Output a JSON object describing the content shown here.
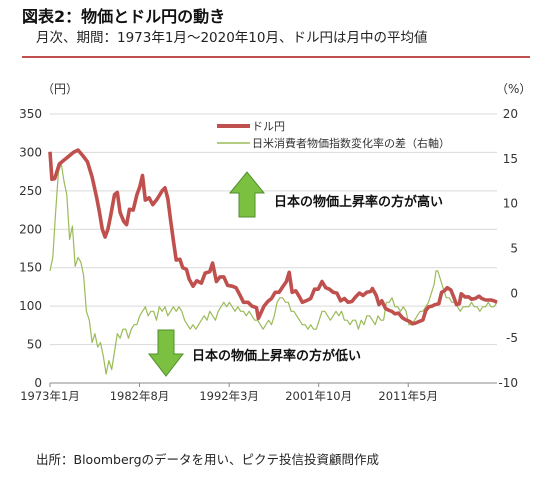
{
  "header": {
    "title": "図表2：物価とドル円の動き",
    "subtitle": "月次、期間：1973年1月～2020年10月、ドル円は月中の平均値"
  },
  "footer": {
    "source": "出所：Bloombergのデータを用い、ピクテ投信投資顧問作成"
  },
  "chart_data": {
    "type": "line",
    "y_left": {
      "unit": "（円）",
      "lim": [
        0,
        350
      ],
      "ticks": [
        0,
        50,
        100,
        150,
        200,
        250,
        300,
        350
      ]
    },
    "y_right": {
      "unit": "（%）",
      "lim": [
        -10,
        20
      ],
      "ticks": [
        -10,
        -5,
        0,
        5,
        10,
        15,
        20
      ]
    },
    "x": {
      "lim": [
        1973.0,
        2020.83
      ],
      "ticks": [
        {
          "value": 1973.0,
          "label": "1973年1月"
        },
        {
          "value": 1982.58,
          "label": "1982年8月"
        },
        {
          "value": 1992.17,
          "label": "1992年3月"
        },
        {
          "value": 2001.75,
          "label": "2001年10月"
        },
        {
          "value": 2011.33,
          "label": "2011年5月"
        }
      ]
    },
    "grid": "horizontal",
    "legend_position": "top-center",
    "colors": {
      "usdjpy": "#c0504d",
      "cpi_diff": "#9bbb59",
      "arrow": "#7cc042"
    },
    "series": [
      {
        "name": "ドル円",
        "axis": "left",
        "points": [
          [
            1973.0,
            301
          ],
          [
            1973.2,
            265
          ],
          [
            1973.5,
            266
          ],
          [
            1974.0,
            285
          ],
          [
            1974.5,
            290
          ],
          [
            1975.0,
            295
          ],
          [
            1975.5,
            300
          ],
          [
            1976.0,
            303
          ],
          [
            1976.5,
            296
          ],
          [
            1977.0,
            288
          ],
          [
            1977.5,
            268
          ],
          [
            1978.0,
            241
          ],
          [
            1978.3,
            222
          ],
          [
            1978.6,
            200
          ],
          [
            1978.9,
            190
          ],
          [
            1979.2,
            200
          ],
          [
            1979.5,
            218
          ],
          [
            1979.9,
            245
          ],
          [
            1980.2,
            248
          ],
          [
            1980.5,
            222
          ],
          [
            1980.9,
            210
          ],
          [
            1981.2,
            206
          ],
          [
            1981.5,
            226
          ],
          [
            1981.9,
            225
          ],
          [
            1982.3,
            245
          ],
          [
            1982.6,
            255
          ],
          [
            1982.9,
            270
          ],
          [
            1983.2,
            238
          ],
          [
            1983.6,
            241
          ],
          [
            1984.0,
            232
          ],
          [
            1984.5,
            240
          ],
          [
            1985.0,
            250
          ],
          [
            1985.3,
            254
          ],
          [
            1985.6,
            240
          ],
          [
            1985.9,
            212
          ],
          [
            1986.2,
            185
          ],
          [
            1986.5,
            160
          ],
          [
            1986.9,
            161
          ],
          [
            1987.2,
            150
          ],
          [
            1987.6,
            148
          ],
          [
            1987.9,
            135
          ],
          [
            1988.3,
            126
          ],
          [
            1988.7,
            133
          ],
          [
            1989.2,
            130
          ],
          [
            1989.6,
            143
          ],
          [
            1990.1,
            145
          ],
          [
            1990.4,
            156
          ],
          [
            1990.8,
            132
          ],
          [
            1991.2,
            138
          ],
          [
            1991.6,
            138
          ],
          [
            1992.0,
            127
          ],
          [
            1992.5,
            126
          ],
          [
            1992.9,
            124
          ],
          [
            1993.3,
            115
          ],
          [
            1993.7,
            105
          ],
          [
            1994.2,
            105
          ],
          [
            1994.6,
            100
          ],
          [
            1995.1,
            98
          ],
          [
            1995.3,
            84
          ],
          [
            1995.6,
            92
          ],
          [
            1995.9,
            100
          ],
          [
            1996.3,
            106
          ],
          [
            1996.7,
            110
          ],
          [
            1997.1,
            118
          ],
          [
            1997.5,
            118
          ],
          [
            1997.9,
            125
          ],
          [
            1998.3,
            132
          ],
          [
            1998.6,
            144
          ],
          [
            1998.9,
            118
          ],
          [
            1999.3,
            120
          ],
          [
            1999.7,
            112
          ],
          [
            2000.0,
            105
          ],
          [
            2000.4,
            107
          ],
          [
            2000.9,
            110
          ],
          [
            2001.3,
            122
          ],
          [
            2001.7,
            122
          ],
          [
            2002.1,
            132
          ],
          [
            2002.5,
            124
          ],
          [
            2002.9,
            122
          ],
          [
            2003.3,
            118
          ],
          [
            2003.7,
            117
          ],
          [
            2004.1,
            107
          ],
          [
            2004.5,
            110
          ],
          [
            2004.9,
            105
          ],
          [
            2005.3,
            106
          ],
          [
            2005.7,
            112
          ],
          [
            2006.1,
            117
          ],
          [
            2006.5,
            114
          ],
          [
            2006.9,
            118
          ],
          [
            2007.3,
            119
          ],
          [
            2007.5,
            123
          ],
          [
            2007.9,
            114
          ],
          [
            2008.2,
            102
          ],
          [
            2008.5,
            107
          ],
          [
            2008.9,
            97
          ],
          [
            2009.2,
            95
          ],
          [
            2009.6,
            93
          ],
          [
            2009.9,
            90
          ],
          [
            2010.3,
            91
          ],
          [
            2010.7,
            85
          ],
          [
            2011.1,
            82
          ],
          [
            2011.5,
            80
          ],
          [
            2011.8,
            77
          ],
          [
            2012.1,
            78
          ],
          [
            2012.5,
            80
          ],
          [
            2012.9,
            82
          ],
          [
            2013.2,
            94
          ],
          [
            2013.5,
            99
          ],
          [
            2013.9,
            100
          ],
          [
            2014.2,
            102
          ],
          [
            2014.6,
            103
          ],
          [
            2014.9,
            118
          ],
          [
            2015.2,
            120
          ],
          [
            2015.5,
            124
          ],
          [
            2015.9,
            121
          ],
          [
            2016.2,
            112
          ],
          [
            2016.5,
            102
          ],
          [
            2016.8,
            103
          ],
          [
            2017.0,
            116
          ],
          [
            2017.4,
            112
          ],
          [
            2017.8,
            112
          ],
          [
            2018.1,
            109
          ],
          [
            2018.5,
            110
          ],
          [
            2018.9,
            113
          ],
          [
            2019.2,
            110
          ],
          [
            2019.6,
            108
          ],
          [
            2019.9,
            108
          ],
          [
            2020.2,
            108
          ],
          [
            2020.5,
            107
          ],
          [
            2020.83,
            105
          ]
        ]
      },
      {
        "name": "日米消費者物価指数変化率の差（右軸）",
        "axis": "right",
        "points": [
          [
            1973.0,
            2.5
          ],
          [
            1973.3,
            4
          ],
          [
            1973.6,
            9
          ],
          [
            1973.9,
            13.5
          ],
          [
            1974.2,
            14.5
          ],
          [
            1974.5,
            12.5
          ],
          [
            1974.8,
            11
          ],
          [
            1975.1,
            6
          ],
          [
            1975.4,
            7.5
          ],
          [
            1975.7,
            3
          ],
          [
            1976.0,
            4
          ],
          [
            1976.3,
            3.5
          ],
          [
            1976.6,
            2
          ],
          [
            1976.9,
            -2
          ],
          [
            1977.2,
            -3
          ],
          [
            1977.5,
            -5.5
          ],
          [
            1977.8,
            -4.5
          ],
          [
            1978.1,
            -6
          ],
          [
            1978.4,
            -5.5
          ],
          [
            1978.7,
            -7
          ],
          [
            1979.0,
            -9
          ],
          [
            1979.3,
            -7.5
          ],
          [
            1979.6,
            -8.5
          ],
          [
            1979.9,
            -6.5
          ],
          [
            1980.2,
            -4.5
          ],
          [
            1980.5,
            -5
          ],
          [
            1980.8,
            -4
          ],
          [
            1981.1,
            -4
          ],
          [
            1981.4,
            -5
          ],
          [
            1981.7,
            -4
          ],
          [
            1982.0,
            -3.5
          ],
          [
            1982.3,
            -3.5
          ],
          [
            1982.6,
            -2.5
          ],
          [
            1982.9,
            -2
          ],
          [
            1983.2,
            -1.5
          ],
          [
            1983.5,
            -2.5
          ],
          [
            1983.8,
            -2
          ],
          [
            1984.1,
            -2
          ],
          [
            1984.4,
            -3
          ],
          [
            1984.7,
            -1.5
          ],
          [
            1985.0,
            -2
          ],
          [
            1985.3,
            -1.5
          ],
          [
            1985.6,
            -2.5
          ],
          [
            1985.9,
            -2
          ],
          [
            1986.2,
            -1.5
          ],
          [
            1986.5,
            -2
          ],
          [
            1986.8,
            -1.5
          ],
          [
            1987.1,
            -2
          ],
          [
            1987.4,
            -3
          ],
          [
            1987.7,
            -3.5
          ],
          [
            1988.0,
            -4
          ],
          [
            1988.3,
            -3.5
          ],
          [
            1988.6,
            -4
          ],
          [
            1988.9,
            -3.5
          ],
          [
            1989.2,
            -3
          ],
          [
            1989.5,
            -2.5
          ],
          [
            1989.8,
            -3
          ],
          [
            1990.1,
            -2
          ],
          [
            1990.4,
            -2.5
          ],
          [
            1990.7,
            -3
          ],
          [
            1991.0,
            -2
          ],
          [
            1991.3,
            -1.5
          ],
          [
            1991.6,
            -1
          ],
          [
            1991.9,
            -1.5
          ],
          [
            1992.2,
            -1
          ],
          [
            1992.5,
            -1.5
          ],
          [
            1992.8,
            -2
          ],
          [
            1993.1,
            -1.5
          ],
          [
            1993.4,
            -2
          ],
          [
            1993.7,
            -2
          ],
          [
            1994.0,
            -2.5
          ],
          [
            1994.3,
            -2
          ],
          [
            1994.6,
            -2.5
          ],
          [
            1994.9,
            -3
          ],
          [
            1995.2,
            -3
          ],
          [
            1995.5,
            -3.5
          ],
          [
            1995.8,
            -4
          ],
          [
            1996.1,
            -3.5
          ],
          [
            1996.4,
            -3
          ],
          [
            1996.7,
            -3.5
          ],
          [
            1997.0,
            -2.5
          ],
          [
            1997.3,
            -1
          ],
          [
            1997.6,
            -0.5
          ],
          [
            1997.9,
            -0.5
          ],
          [
            1998.2,
            -1
          ],
          [
            1998.5,
            -1
          ],
          [
            1998.8,
            -2
          ],
          [
            1999.1,
            -2
          ],
          [
            1999.4,
            -2.5
          ],
          [
            1999.7,
            -3
          ],
          [
            2000.0,
            -3.5
          ],
          [
            2000.3,
            -3.5
          ],
          [
            2000.6,
            -4
          ],
          [
            2000.9,
            -3.5
          ],
          [
            2001.2,
            -4
          ],
          [
            2001.5,
            -4
          ],
          [
            2001.8,
            -3
          ],
          [
            2002.1,
            -2
          ],
          [
            2002.4,
            -2
          ],
          [
            2002.7,
            -2.5
          ],
          [
            2003.0,
            -3
          ],
          [
            2003.3,
            -2.5
          ],
          [
            2003.6,
            -2
          ],
          [
            2003.9,
            -2.5
          ],
          [
            2004.2,
            -2
          ],
          [
            2004.5,
            -3
          ],
          [
            2004.8,
            -3
          ],
          [
            2005.1,
            -3.5
          ],
          [
            2005.4,
            -3
          ],
          [
            2005.7,
            -3
          ],
          [
            2006.0,
            -4
          ],
          [
            2006.3,
            -3
          ],
          [
            2006.6,
            -3.5
          ],
          [
            2006.9,
            -2.5
          ],
          [
            2007.2,
            -2.5
          ],
          [
            2007.5,
            -3
          ],
          [
            2007.8,
            -3.5
          ],
          [
            2008.1,
            -2.5
          ],
          [
            2008.4,
            -3
          ],
          [
            2008.7,
            -3
          ],
          [
            2009.0,
            -1
          ],
          [
            2009.3,
            -1
          ],
          [
            2009.6,
            -0.5
          ],
          [
            2009.9,
            -1.5
          ],
          [
            2010.2,
            -1.5
          ],
          [
            2010.5,
            -2
          ],
          [
            2010.8,
            -1.5
          ],
          [
            2011.1,
            -2
          ],
          [
            2011.4,
            -3.5
          ],
          [
            2011.7,
            -3.5
          ],
          [
            2012.0,
            -3
          ],
          [
            2012.3,
            -2.5
          ],
          [
            2012.6,
            -2
          ],
          [
            2012.9,
            -2
          ],
          [
            2013.2,
            -1.5
          ],
          [
            2013.5,
            -1
          ],
          [
            2013.8,
            0
          ],
          [
            2014.1,
            1
          ],
          [
            2014.3,
            2.5
          ],
          [
            2014.5,
            2.5
          ],
          [
            2014.8,
            1.5
          ],
          [
            2015.1,
            0.5
          ],
          [
            2015.4,
            -0.5
          ],
          [
            2015.7,
            -0.5
          ],
          [
            2016.0,
            -1
          ],
          [
            2016.3,
            -1
          ],
          [
            2016.6,
            -1.5
          ],
          [
            2016.9,
            -2
          ],
          [
            2017.2,
            -1.5
          ],
          [
            2017.5,
            -1.5
          ],
          [
            2017.8,
            -1.5
          ],
          [
            2018.1,
            -1
          ],
          [
            2018.4,
            -1.5
          ],
          [
            2018.7,
            -1.5
          ],
          [
            2019.0,
            -2
          ],
          [
            2019.3,
            -1.5
          ],
          [
            2019.6,
            -1.5
          ],
          [
            2019.9,
            -1
          ],
          [
            2020.2,
            -1.5
          ],
          [
            2020.5,
            -1.5
          ],
          [
            2020.83,
            -1
          ]
        ]
      }
    ],
    "annotations": [
      {
        "text": "日本の物価上昇率の方が高い",
        "arrow": "up"
      },
      {
        "text": "日本の物価上昇率の方が低い",
        "arrow": "down"
      }
    ]
  }
}
